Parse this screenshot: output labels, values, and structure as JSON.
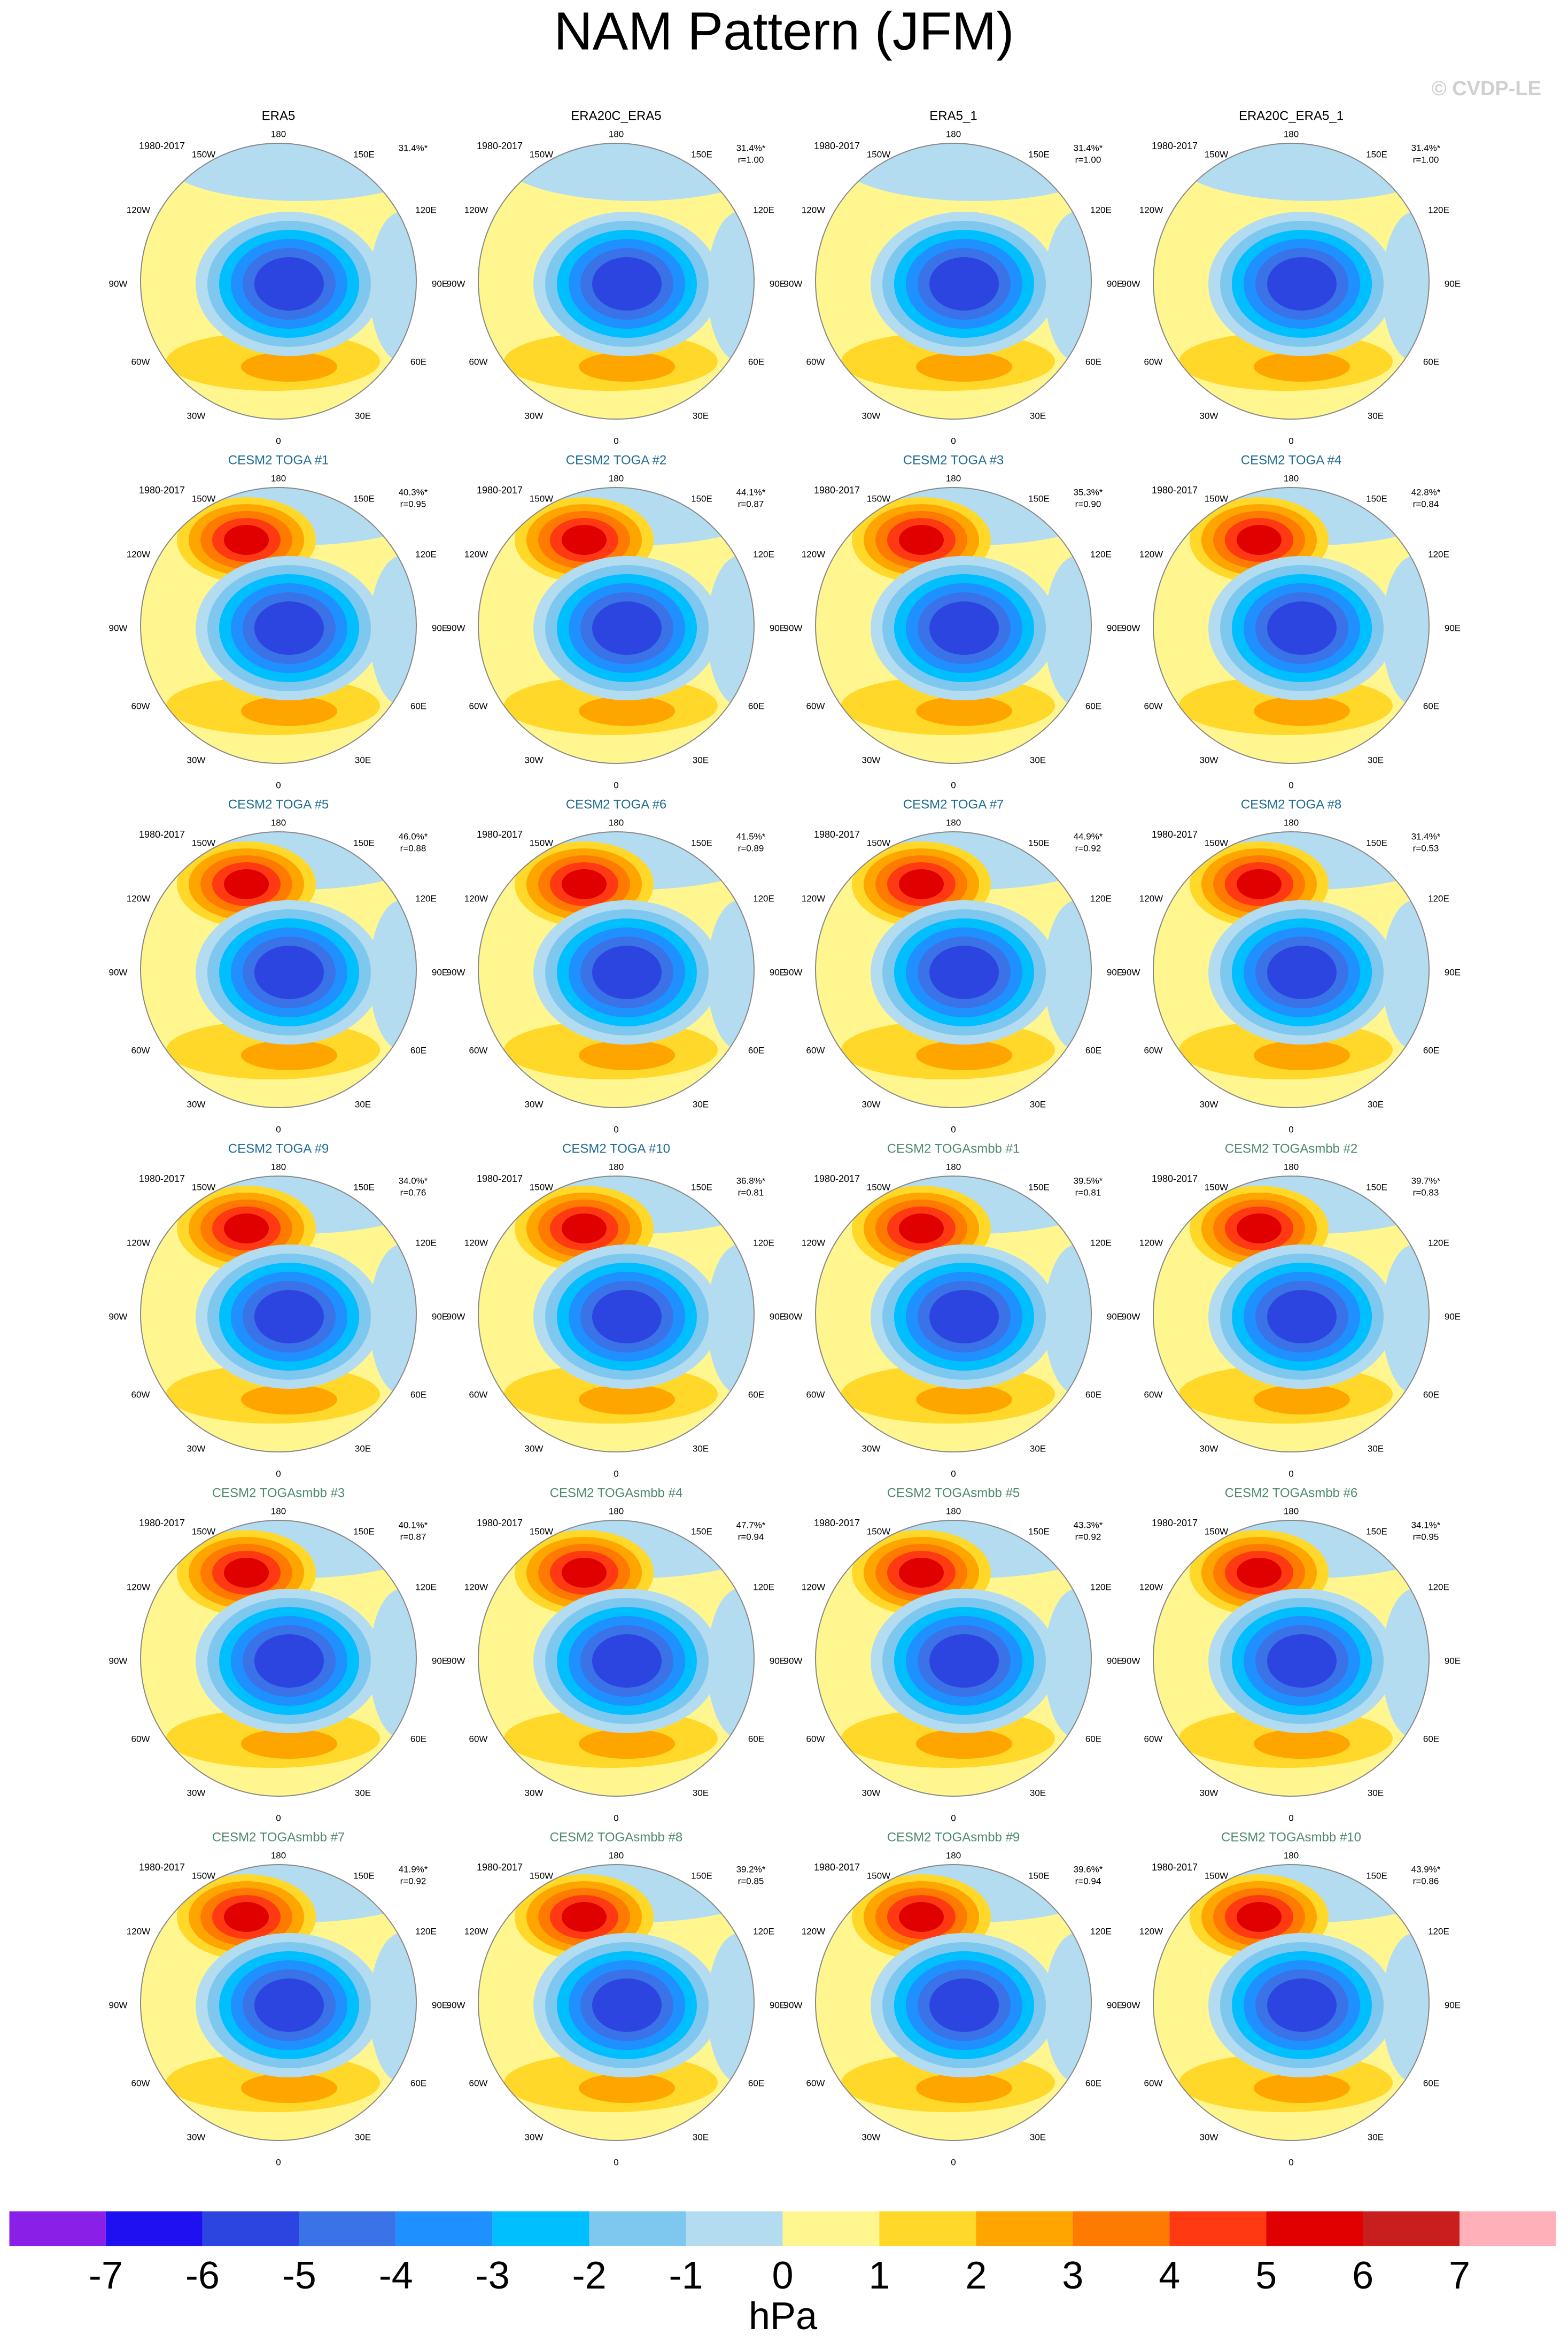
{
  "title": "NAM Pattern (JFM)",
  "watermark": "© CVDP-LE",
  "lon_labels": {
    "n": "180",
    "s": "0",
    "w150": "150W",
    "e150": "150E",
    "w120": "120W",
    "e120": "120E",
    "w90": "90W",
    "e90": "90E",
    "w60": "60W",
    "e60": "60E",
    "w30": "30W",
    "e30": "30E"
  },
  "panels": [
    {
      "title": "ERA5",
      "title_color": "#000000",
      "period": "1980-2017",
      "pct": "31.4%*"
    },
    {
      "title": "ERA20C_ERA5",
      "title_color": "#000000",
      "period": "1980-2017",
      "pct": "31.4%*",
      "r": "r=1.00"
    },
    {
      "title": "ERA5_1",
      "title_color": "#000000",
      "period": "1980-2017",
      "pct": "31.4%*",
      "r": "r=1.00"
    },
    {
      "title": "ERA20C_ERA5_1",
      "title_color": "#000000",
      "period": "1980-2017",
      "pct": "31.4%*",
      "r": "r=1.00"
    },
    {
      "title": "CESM2 TOGA #1",
      "title_color": "#1f6b94",
      "period": "1980-2017",
      "pct": "40.3%*",
      "r": "r=0.95"
    },
    {
      "title": "CESM2 TOGA #2",
      "title_color": "#1f6b94",
      "period": "1980-2017",
      "pct": "44.1%*",
      "r": "r=0.87"
    },
    {
      "title": "CESM2 TOGA #3",
      "title_color": "#1f6b94",
      "period": "1980-2017",
      "pct": "35.3%*",
      "r": "r=0.90"
    },
    {
      "title": "CESM2 TOGA #4",
      "title_color": "#1f6b94",
      "period": "1980-2017",
      "pct": "42.8%*",
      "r": "r=0.84"
    },
    {
      "title": "CESM2 TOGA #5",
      "title_color": "#1f6b94",
      "period": "1980-2017",
      "pct": "46.0%*",
      "r": "r=0.88"
    },
    {
      "title": "CESM2 TOGA #6",
      "title_color": "#1f6b94",
      "period": "1980-2017",
      "pct": "41.5%*",
      "r": "r=0.89"
    },
    {
      "title": "CESM2 TOGA #7",
      "title_color": "#1f6b94",
      "period": "1980-2017",
      "pct": "44.9%*",
      "r": "r=0.92"
    },
    {
      "title": "CESM2 TOGA #8",
      "title_color": "#1f6b94",
      "period": "1980-2017",
      "pct": "31.4%*",
      "r": "r=0.53"
    },
    {
      "title": "CESM2 TOGA #9",
      "title_color": "#1f6b94",
      "period": "1980-2017",
      "pct": "34.0%*",
      "r": "r=0.76"
    },
    {
      "title": "CESM2 TOGA #10",
      "title_color": "#1f6b94",
      "period": "1980-2017",
      "pct": "36.8%*",
      "r": "r=0.81"
    },
    {
      "title": "CESM2 TOGAsmbb #1",
      "title_color": "#4e8a6c",
      "period": "1980-2017",
      "pct": "39.5%*",
      "r": "r=0.81"
    },
    {
      "title": "CESM2 TOGAsmbb #2",
      "title_color": "#4e8a6c",
      "period": "1980-2017",
      "pct": "39.7%*",
      "r": "r=0.83"
    },
    {
      "title": "CESM2 TOGAsmbb #3",
      "title_color": "#4e8a6c",
      "period": "1980-2017",
      "pct": "40.1%*",
      "r": "r=0.87"
    },
    {
      "title": "CESM2 TOGAsmbb #4",
      "title_color": "#4e8a6c",
      "period": "1980-2017",
      "pct": "47.7%*",
      "r": "r=0.94"
    },
    {
      "title": "CESM2 TOGAsmbb #5",
      "title_color": "#4e8a6c",
      "period": "1980-2017",
      "pct": "43.3%*",
      "r": "r=0.92"
    },
    {
      "title": "CESM2 TOGAsmbb #6",
      "title_color": "#4e8a6c",
      "period": "1980-2017",
      "pct": "34.1%*",
      "r": "r=0.95"
    },
    {
      "title": "CESM2 TOGAsmbb #7",
      "title_color": "#4e8a6c",
      "period": "1980-2017",
      "pct": "41.9%*",
      "r": "r=0.92"
    },
    {
      "title": "CESM2 TOGAsmbb #8",
      "title_color": "#4e8a6c",
      "period": "1980-2017",
      "pct": "39.2%*",
      "r": "r=0.85"
    },
    {
      "title": "CESM2 TOGAsmbb #9",
      "title_color": "#4e8a6c",
      "period": "1980-2017",
      "pct": "39.6%*",
      "r": "r=0.94"
    },
    {
      "title": "CESM2 TOGAsmbb #10",
      "title_color": "#4e8a6c",
      "period": "1980-2017",
      "pct": "43.9%*",
      "r": "r=0.86"
    }
  ],
  "colorbar": {
    "colors": [
      "#8a1fe8",
      "#1e10f0",
      "#2c45e0",
      "#3a72e8",
      "#1e90ff",
      "#00bfff",
      "#7ec8f0",
      "#b4dcf0",
      "#fff68f",
      "#ffd82a",
      "#ffa500",
      "#ff7a00",
      "#ff3a12",
      "#e00000",
      "#c81e1e",
      "#ffb0b8"
    ],
    "ticks": [
      -7,
      -6,
      -5,
      -4,
      -3,
      -2,
      -1,
      0,
      1,
      2,
      3,
      4,
      5,
      6,
      7
    ],
    "label": "hPa"
  }
}
